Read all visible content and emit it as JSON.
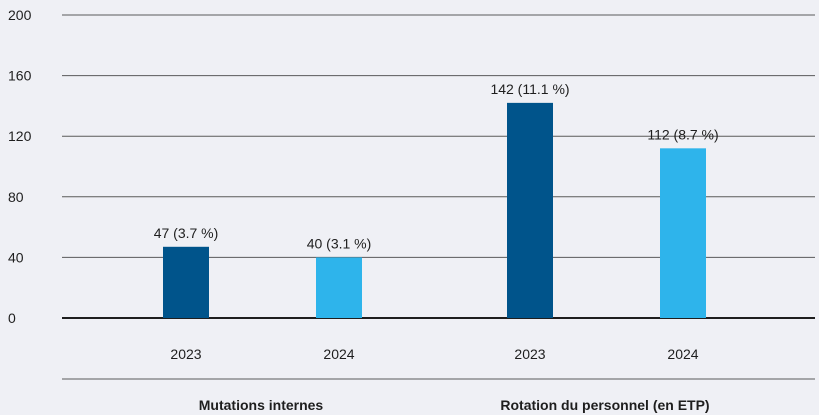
{
  "chart_data": {
    "type": "bar",
    "ylim": [
      0,
      200
    ],
    "yticks": [
      0,
      40,
      80,
      120,
      160,
      200
    ],
    "grid": true,
    "groups": [
      {
        "label": "Mutations internes",
        "bars": [
          {
            "category": "2023",
            "value": 47,
            "label": "47 (3.7 %)",
            "color": "#00548b"
          },
          {
            "category": "2024",
            "value": 40,
            "label": "40 (3.1 %)",
            "color": "#2eb4eb"
          }
        ]
      },
      {
        "label": "Rotation du personnel (en ETP)",
        "bars": [
          {
            "category": "2023",
            "value": 142,
            "label": "142 (11.1 %)",
            "color": "#00548b"
          },
          {
            "category": "2024",
            "value": 112,
            "label": "112 (8.7 %)",
            "color": "#2eb4eb"
          }
        ]
      }
    ]
  }
}
